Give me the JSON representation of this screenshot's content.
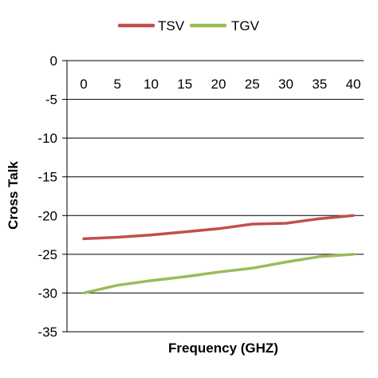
{
  "chart_data": {
    "type": "line",
    "xlabel": "Frequency (GHZ)",
    "ylabel": "Cross Talk",
    "x": [
      0,
      5,
      10,
      15,
      20,
      25,
      30,
      35,
      40
    ],
    "xlim": [
      0,
      40
    ],
    "ylim": [
      -35,
      0
    ],
    "yticks": [
      0,
      -5,
      -10,
      -15,
      -20,
      -25,
      -30,
      -35
    ],
    "grid": "horizontal",
    "legend": "top-center",
    "series": [
      {
        "name": "TSV",
        "color": "#c0504d",
        "values": [
          -23,
          -22.8,
          -22.5,
          -22.1,
          -21.7,
          -21.1,
          -21.0,
          -20.4,
          -20
        ]
      },
      {
        "name": "TGV",
        "color": "#9bbb59",
        "values": [
          -30,
          -29.0,
          -28.4,
          -27.9,
          -27.3,
          -26.8,
          -26.0,
          -25.3,
          -25
        ]
      }
    ]
  }
}
